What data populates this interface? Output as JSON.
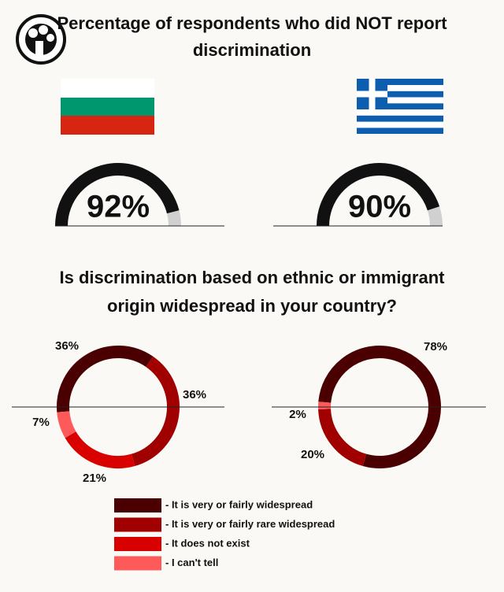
{
  "title": "Percentage of respondents who did NOT report discrimination",
  "subtitle": "Is discrimination based on ethnic or immigrant origin widespread in your country?",
  "legend": {
    "labels": [
      "- It is very or fairly widespread",
      "- It is very or fairly rare widespread",
      "- It does not exist",
      "- I can't tell"
    ],
    "colors": [
      "#4a0000",
      "#a00000",
      "#d90000",
      "#ff5a5a"
    ]
  },
  "chart_data": [
    {
      "type": "gauge",
      "values": [
        92
      ],
      "value_labels": [
        "92%"
      ],
      "ylim": [
        0,
        100
      ],
      "color": "#111111"
    },
    {
      "type": "gauge",
      "values": [
        90
      ],
      "value_labels": [
        "90%"
      ],
      "ylim": [
        0,
        100
      ],
      "color": "#111111"
    },
    {
      "type": "donut",
      "values": [
        36,
        36,
        21,
        7
      ],
      "value_labels": [
        "36%",
        "36%",
        "21%",
        "7%"
      ]
    },
    {
      "type": "donut",
      "values": [
        78,
        20,
        null,
        2
      ],
      "value_labels": [
        "78%",
        "20%",
        null,
        "2%"
      ]
    }
  ]
}
